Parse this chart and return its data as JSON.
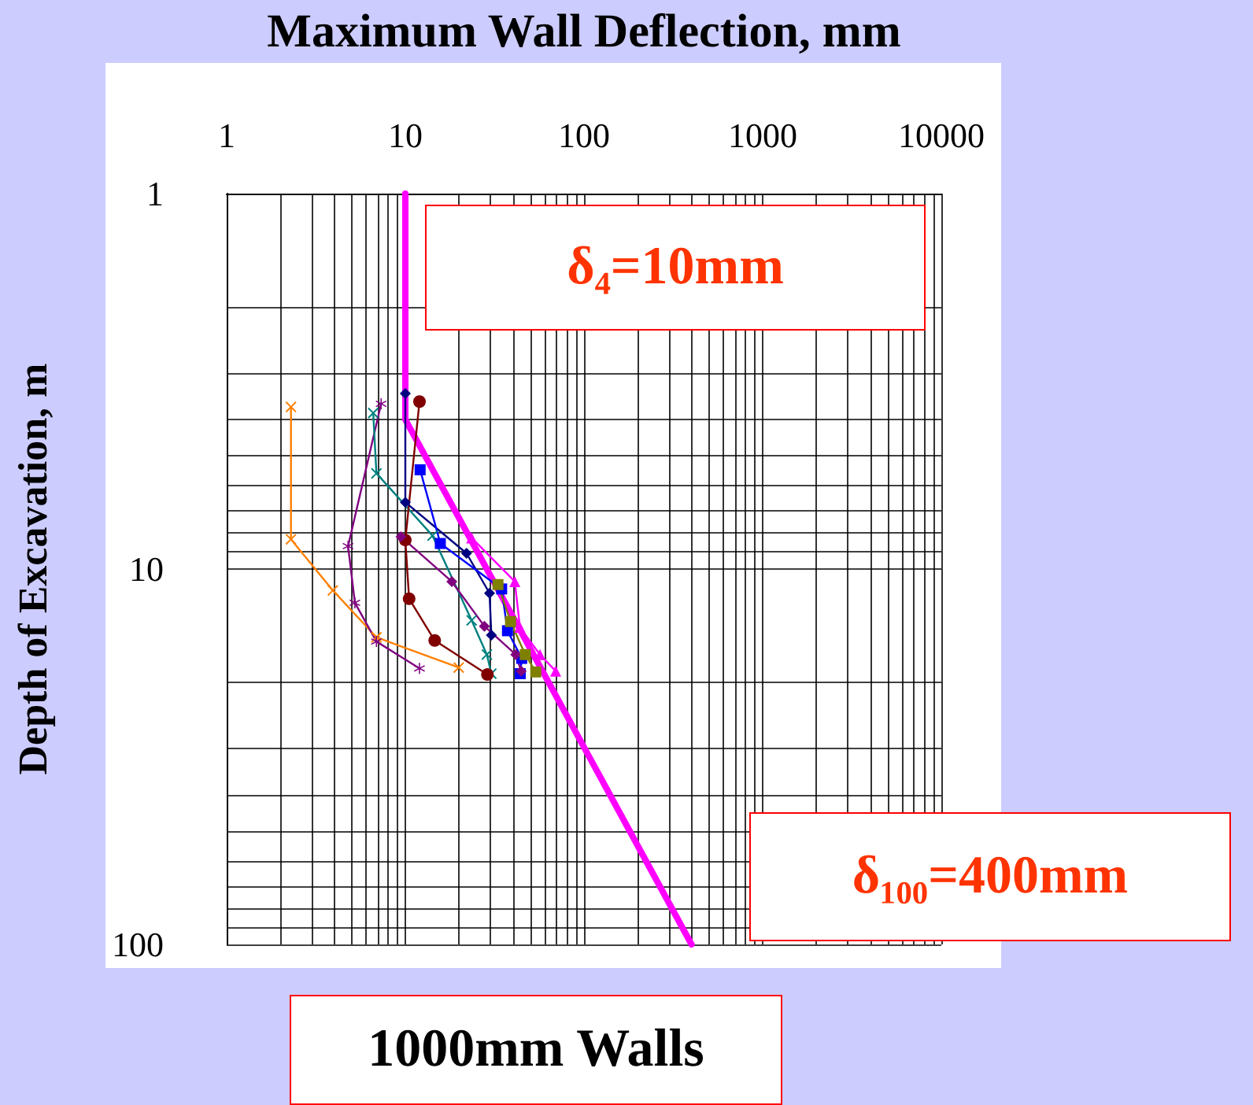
{
  "chart_data": {
    "type": "line",
    "xlabel": "Maximum Wall Deflection, mm",
    "ylabel": "Depth of Excavation, m",
    "annotations": [
      "δ₄=10mm",
      "δ₁₀₀=400mm",
      "1000mm Walls"
    ],
    "xlim": [
      1,
      10000
    ],
    "xticks": [
      1,
      10,
      100,
      1000,
      10000
    ],
    "ylim": [
      100,
      1
    ],
    "yticks": [
      1,
      10,
      100
    ],
    "log": "xy",
    "grid": true,
    "series": [
      {
        "color": "#ff00ff",
        "marker": "none",
        "x": [
          10,
          10,
          400
        ],
        "values": [
          1,
          4,
          100
        ]
      },
      {
        "color": "#ff8000",
        "marker": "cross",
        "x": [
          2.29,
          2.29,
          3.93,
          6.89,
          19.9
        ],
        "values": [
          3.7,
          8.33,
          11.4,
          15.2,
          18.3
        ]
      },
      {
        "color": "#800080",
        "marker": "star",
        "x": [
          7.32,
          4.78,
          5.22,
          6.89,
          12.0
        ],
        "values": [
          3.63,
          8.69,
          12.3,
          15.6,
          18.4
        ]
      },
      {
        "color": "#008080",
        "marker": "cross",
        "x": [
          6.61,
          6.89,
          14.2,
          23.5,
          28.6,
          30.3
        ],
        "values": [
          3.84,
          5.56,
          8.15,
          13.7,
          16.9,
          19.0
        ]
      },
      {
        "color": "#800000",
        "marker": "circle",
        "x": [
          12.0,
          10.0,
          10.5,
          14.6,
          28.8
        ],
        "values": [
          3.58,
          8.37,
          12.0,
          15.5,
          19.1
        ]
      },
      {
        "color": "#000080",
        "marker": "diamond",
        "x": [
          10.0,
          10.0,
          22.0,
          29.6,
          30.3
        ],
        "values": [
          3.41,
          6.64,
          9.08,
          11.6,
          15.0
        ]
      },
      {
        "color": "#0000ff",
        "marker": "square",
        "x": [
          12.1,
          15.7,
          34.6,
          37.3,
          44.8,
          44.0
        ],
        "values": [
          5.44,
          8.55,
          11.3,
          14.6,
          17.3,
          19.0
        ]
      },
      {
        "color": "#800080",
        "marker": "diamond",
        "x": [
          9.45,
          18.2,
          27.7,
          41.5,
          44.5
        ],
        "values": [
          8.2,
          10.8,
          14.2,
          16.9,
          18.7
        ]
      },
      {
        "color": "#808000",
        "marker": "square",
        "x": [
          33.0,
          38.8,
          46.9,
          53.7
        ],
        "values": [
          11.0,
          13.8,
          16.9,
          18.8
        ]
      },
      {
        "color": "#ff00ff",
        "marker": "triangle",
        "x": [
          23.5,
          41.0,
          43.8,
          56.7,
          69.4
        ],
        "values": [
          8.26,
          10.8,
          14.3,
          16.9,
          18.7
        ]
      }
    ]
  }
}
